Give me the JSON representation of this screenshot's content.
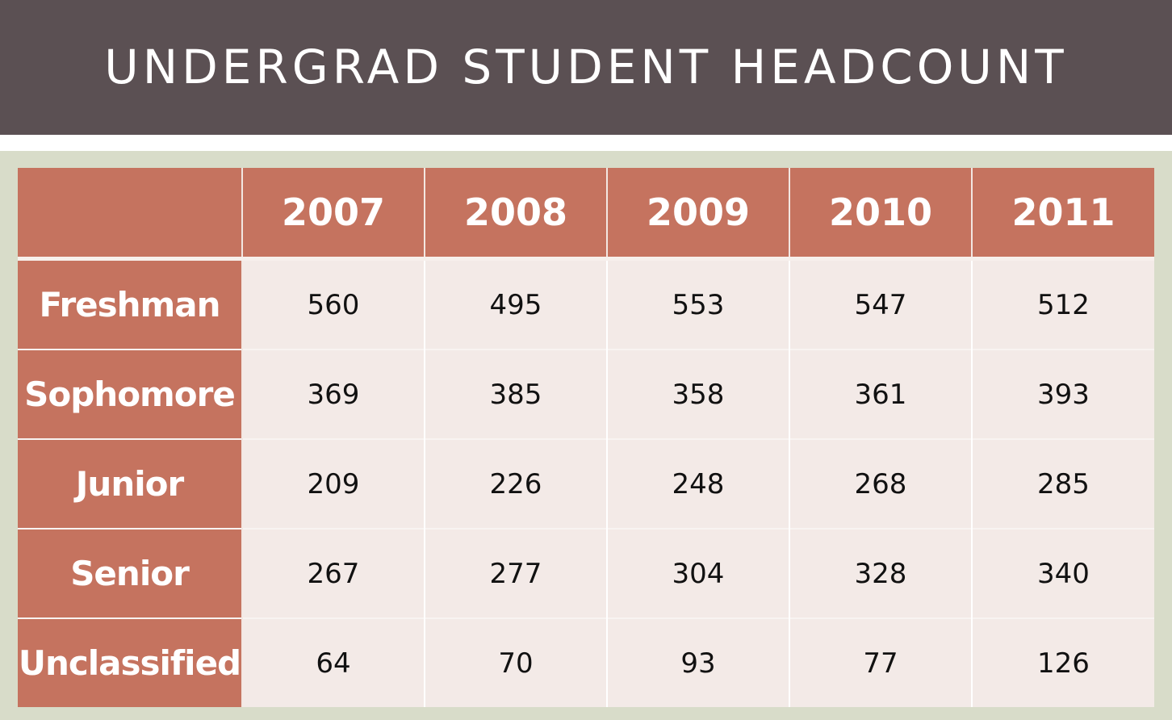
{
  "title": "UNDERGRAD STUDENT HEADCOUNT",
  "colors": {
    "title_band": "#5b5053",
    "panel": "#d8dcc9",
    "header": "#c5735f",
    "cell": "#f3eae7"
  },
  "chart_data": {
    "type": "table",
    "title": "UNDERGRAD STUDENT HEADCOUNT",
    "columns": [
      "",
      "2007",
      "2008",
      "2009",
      "2010",
      "2011"
    ],
    "rows": [
      {
        "label": "Freshman",
        "values": [
          560,
          495,
          553,
          547,
          512
        ]
      },
      {
        "label": "Sophomore",
        "values": [
          369,
          385,
          358,
          361,
          393
        ]
      },
      {
        "label": "Junior",
        "values": [
          209,
          226,
          248,
          268,
          285
        ]
      },
      {
        "label": "Senior",
        "values": [
          267,
          277,
          304,
          328,
          340
        ]
      },
      {
        "label": "Unclassified",
        "values": [
          64,
          70,
          93,
          77,
          126
        ]
      }
    ]
  }
}
